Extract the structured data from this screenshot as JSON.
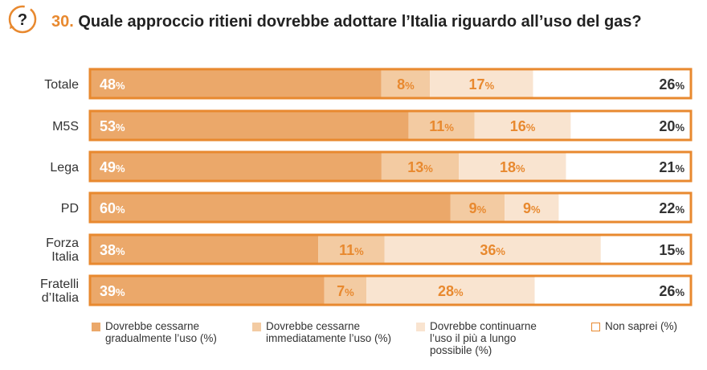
{
  "header": {
    "number": "30.",
    "title": "Quale approccio ritieni dovrebbe adottare l’Italia riguardo all’uso del gas?"
  },
  "icon_name": "question-mark-icon",
  "colors": {
    "accent": "#e8892f",
    "bar_border": "#e8892f",
    "seg1": "#eba86a",
    "seg2": "#f3cba2",
    "seg3": "#f9e4d0",
    "seg4": "#ffffff"
  },
  "chart_data": {
    "type": "bar",
    "orientation": "horizontal",
    "stacked": true,
    "categories": [
      "Totale",
      "M5S",
      "Lega",
      "PD",
      "Forza Italia",
      "Fratelli d’Italia"
    ],
    "series": [
      {
        "name": "Dovrebbe cessarne gradualmente l’uso (%)",
        "values": [
          48,
          53,
          49,
          60,
          38,
          39
        ]
      },
      {
        "name": "Dovrebbe cessarne immediatamente l’uso (%)",
        "values": [
          8,
          11,
          13,
          9,
          11,
          7
        ]
      },
      {
        "name": "Dovrebbe continuarne l’uso il più a lungo possibile (%)",
        "values": [
          17,
          16,
          18,
          9,
          36,
          28
        ]
      },
      {
        "name": "Non saprei (%)",
        "values": [
          26,
          20,
          21,
          22,
          15,
          26
        ]
      }
    ],
    "value_suffix": "%",
    "xlim": [
      0,
      100
    ],
    "legend_position": "bottom",
    "grid": false
  }
}
